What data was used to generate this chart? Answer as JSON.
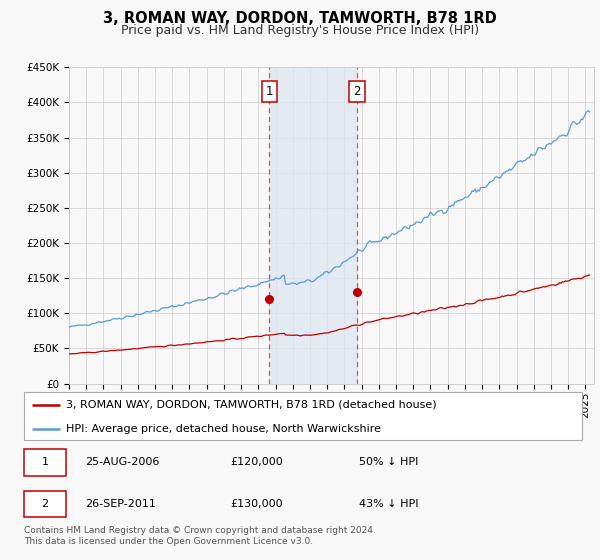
{
  "title": "3, ROMAN WAY, DORDON, TAMWORTH, B78 1RD",
  "subtitle": "Price paid vs. HM Land Registry's House Price Index (HPI)",
  "ylim": [
    0,
    450000
  ],
  "yticks": [
    0,
    50000,
    100000,
    150000,
    200000,
    250000,
    300000,
    350000,
    400000,
    450000
  ],
  "ytick_labels": [
    "£0",
    "£50K",
    "£100K",
    "£150K",
    "£200K",
    "£250K",
    "£300K",
    "£350K",
    "£400K",
    "£450K"
  ],
  "xlim_start": 1995.0,
  "xlim_end": 2025.5,
  "hpi_color": "#5b9bd5",
  "price_color": "#c00000",
  "marker_color": "#c00000",
  "shade_color": "#dce6f1",
  "vline_color": "#e05050",
  "grid_color": "#cccccc",
  "bg_color": "#f8f8f8",
  "legend_box_color": "#aaaaaa",
  "sale1_x": 2006.648,
  "sale1_y": 120000,
  "sale2_x": 2011.73,
  "sale2_y": 130000,
  "legend_line1": "3, ROMAN WAY, DORDON, TAMWORTH, B78 1RD (detached house)",
  "legend_line2": "HPI: Average price, detached house, North Warwickshire",
  "table_row1": [
    "1",
    "25-AUG-2006",
    "£120,000",
    "50% ↓ HPI"
  ],
  "table_row2": [
    "2",
    "26-SEP-2011",
    "£130,000",
    "43% ↓ HPI"
  ],
  "footnote": "Contains HM Land Registry data © Crown copyright and database right 2024.\nThis data is licensed under the Open Government Licence v3.0.",
  "title_fontsize": 10.5,
  "subtitle_fontsize": 9,
  "tick_fontsize": 7.5,
  "legend_fontsize": 8,
  "table_fontsize": 8,
  "footnote_fontsize": 6.5
}
